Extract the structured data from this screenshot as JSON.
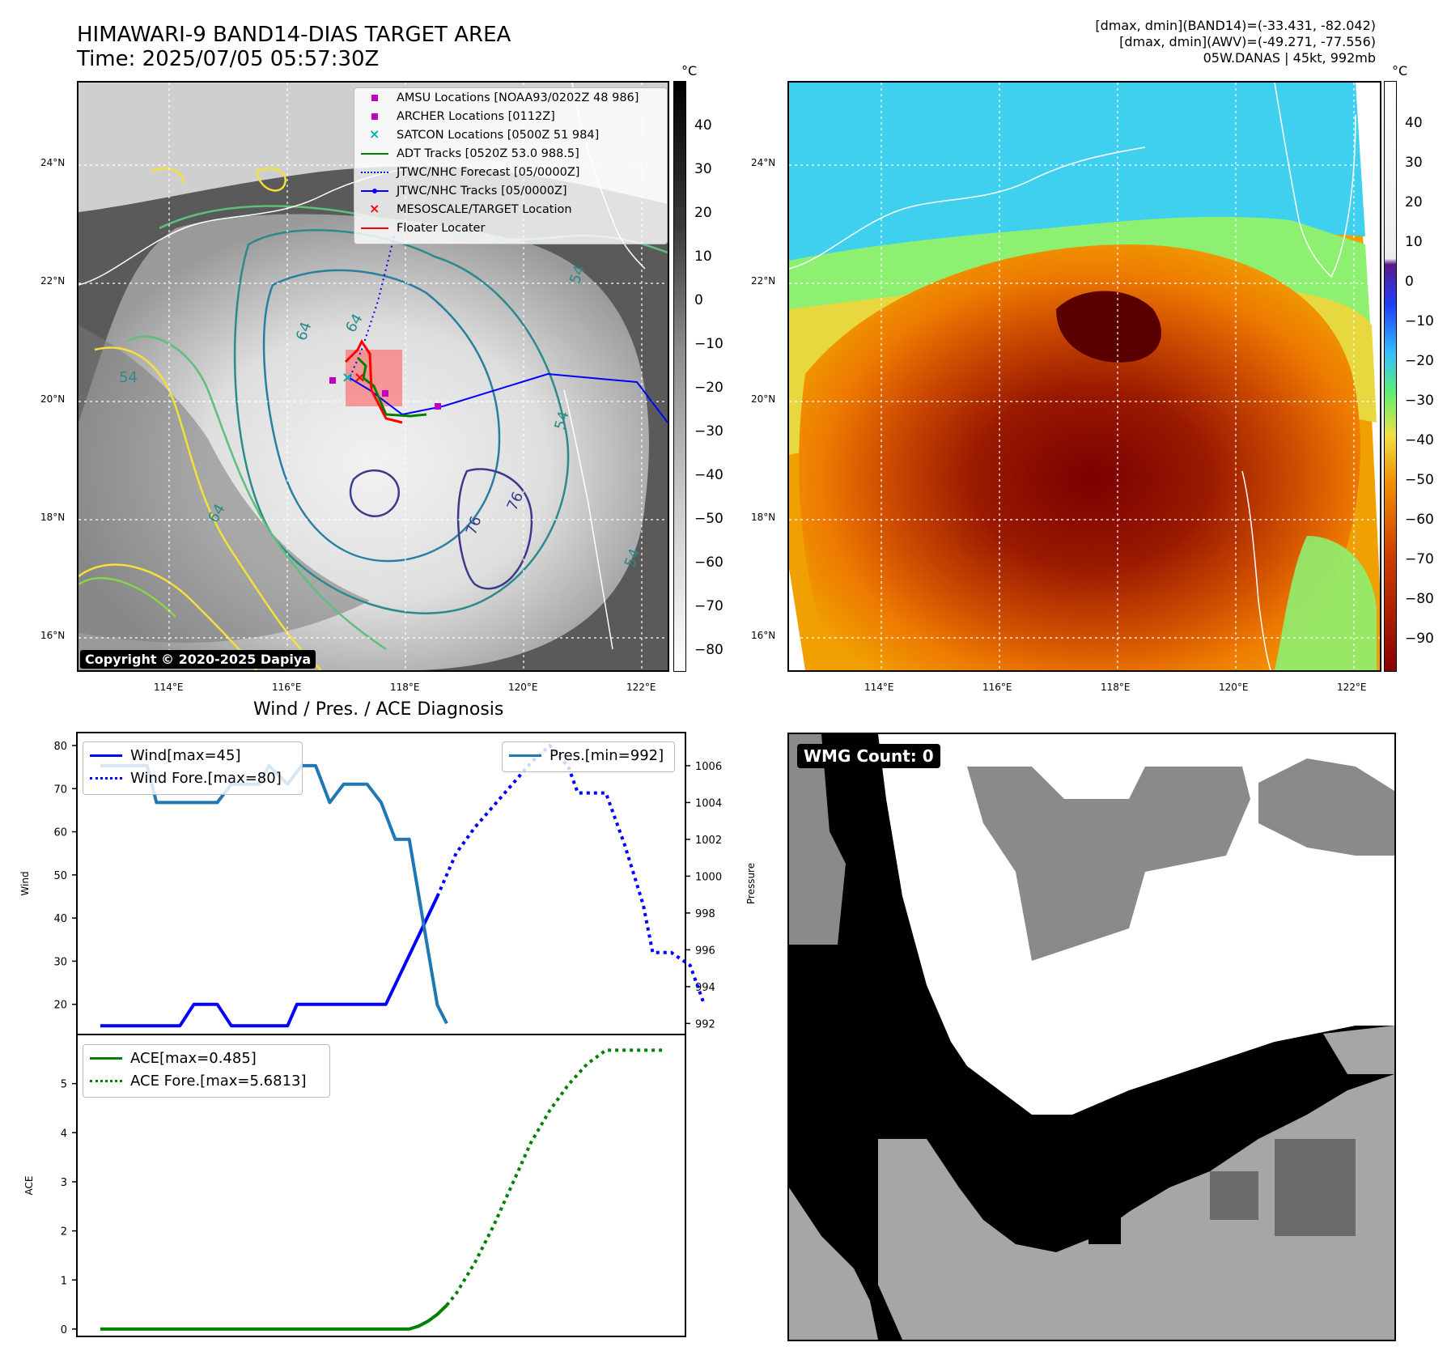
{
  "header": {
    "title_line1": "HIMAWARI-9 BAND14-DIAS TARGET AREA",
    "title_line2": "Time: 2025/07/05 05:57:30Z",
    "info_line1": "[dmax, dmin](BAND14)=(-33.431, -82.042)",
    "info_line2": "[dmax, dmin](AWV)=(-49.271, -77.556)",
    "info_line3": "05W.DANAS | 45kt, 992mb"
  },
  "map_ir": {
    "lat_labels": [
      "24°N",
      "22°N",
      "20°N",
      "18°N",
      "16°N"
    ],
    "lon_labels": [
      "114°E",
      "116°E",
      "118°E",
      "120°E",
      "122°E"
    ],
    "colorbar_unit": "°C",
    "colorbar_ticks": [
      "40",
      "30",
      "20",
      "10",
      "0",
      "−10",
      "−20",
      "−30",
      "−40",
      "−50",
      "−60",
      "−70",
      "−80"
    ],
    "copyright": "Copyright © 2020-2025 Dapiya",
    "contour_labels": [
      "64",
      "64",
      "54",
      "54",
      "54",
      "64",
      "76",
      "76",
      "54"
    ],
    "legend": [
      {
        "label": "AMSU Locations [NOAA93/0202Z 48 986]",
        "marker": "square",
        "color": "#c000c0"
      },
      {
        "label": "ARCHER Locations [0112Z]",
        "marker": "square",
        "color": "#c000c0"
      },
      {
        "label": "SATCON Locations [0500Z 51 984]",
        "marker": "x",
        "color": "#00b0b0"
      },
      {
        "label": "ADT Tracks [0520Z 53.0 988.5]",
        "marker": "line",
        "color": "#008000"
      },
      {
        "label": "JTWC/NHC Forecast [05/0000Z]",
        "marker": "dotted",
        "color": "#0000ff"
      },
      {
        "label": "JTWC/NHC Tracks [05/0000Z]",
        "marker": "line-dot",
        "color": "#0000ff"
      },
      {
        "label": "MESOSCALE/TARGET Location",
        "marker": "x",
        "color": "#ff0000"
      },
      {
        "label": "Floater Locater",
        "marker": "line",
        "color": "#ff0000"
      }
    ]
  },
  "map_wv": {
    "lat_labels": [
      "24°N",
      "22°N",
      "20°N",
      "18°N",
      "16°N"
    ],
    "lon_labels": [
      "114°E",
      "116°E",
      "118°E",
      "120°E",
      "122°E"
    ],
    "colorbar_unit": "°C",
    "colorbar_ticks": [
      "40",
      "30",
      "20",
      "10",
      "0",
      "−10",
      "−20",
      "−30",
      "−40",
      "−50",
      "−60",
      "−70",
      "−80",
      "−90"
    ]
  },
  "diagnosis_title": "Wind / Pres. / ACE Diagnosis",
  "wmg": {
    "label": "WMG Count: 0"
  },
  "chart_data": [
    {
      "type": "line",
      "title": "Wind / Pres. / ACE Diagnosis",
      "ylabel": "Wind",
      "ylabel_right": "Pressure",
      "x": [
        0,
        1,
        2,
        3,
        4,
        5,
        6,
        7,
        8,
        9,
        10,
        11,
        12,
        13,
        14,
        15,
        16,
        17,
        18,
        19,
        20,
        21,
        22,
        23,
        24,
        25,
        26,
        27,
        28,
        29,
        30,
        31,
        32,
        33,
        34,
        35,
        36,
        37,
        38,
        39,
        40,
        41,
        42,
        43,
        44,
        45,
        46,
        47,
        48,
        49,
        50,
        51,
        52,
        53,
        54,
        55,
        56,
        57,
        58,
        59,
        60,
        61,
        62,
        63,
        64,
        65,
        66,
        67,
        68,
        69,
        70,
        71,
        72,
        73,
        74,
        75,
        76,
        77,
        78,
        79,
        80,
        81,
        82,
        83,
        84,
        85,
        86,
        87,
        88,
        89,
        90,
        91,
        92,
        93,
        94,
        95,
        96,
        97,
        98,
        99,
        100,
        101,
        102,
        103,
        104,
        105,
        106,
        107,
        108,
        109,
        110,
        111,
        112,
        113,
        114,
        115,
        116,
        117,
        118,
        119,
        120
      ],
      "xlim": [
        -5,
        125
      ],
      "ylim": [
        13,
        83
      ],
      "ylim_right": [
        991.4,
        1007.8
      ],
      "yticks": [
        20,
        30,
        40,
        50,
        60,
        70,
        80
      ],
      "yticks_right": [
        992,
        994,
        996,
        998,
        1000,
        1002,
        1004,
        1006
      ],
      "series": [
        {
          "name": "Wind[max=45]",
          "axis": "left",
          "style": "solid",
          "color": "#0000ff",
          "points": [
            [
              0,
              15
            ],
            [
              17,
              15
            ],
            [
              20,
              20
            ],
            [
              25,
              20
            ],
            [
              28,
              15
            ],
            [
              40,
              15
            ],
            [
              42,
              20
            ],
            [
              61,
              20
            ],
            [
              72,
              45
            ]
          ]
        },
        {
          "name": "Wind Fore.[max=80]",
          "axis": "left",
          "style": "dotted",
          "color": "#0000ff",
          "points": [
            [
              72,
              45
            ],
            [
              76,
              55
            ],
            [
              80,
              61
            ],
            [
              84,
              66
            ],
            [
              88,
              71
            ],
            [
              92,
              76
            ],
            [
              96,
              80
            ],
            [
              100,
              75
            ],
            [
              102,
              69
            ],
            [
              108,
              69
            ],
            [
              112,
              57
            ],
            [
              114,
              50
            ],
            [
              116,
              43
            ],
            [
              118,
              32
            ],
            [
              122,
              32
            ],
            [
              126,
              29
            ],
            [
              129,
              20
            ]
          ]
        },
        {
          "name": "Pres.[min=992]",
          "axis": "right",
          "style": "solid",
          "color": "#1f77b4",
          "points": [
            [
              0,
              1006
            ],
            [
              10,
              1006
            ],
            [
              12,
              1004
            ],
            [
              25,
              1004
            ],
            [
              28,
              1005
            ],
            [
              34,
              1005
            ],
            [
              36,
              1006
            ],
            [
              40,
              1005
            ],
            [
              43,
              1006
            ],
            [
              46,
              1006
            ],
            [
              49,
              1004
            ],
            [
              52,
              1005
            ],
            [
              57,
              1005
            ],
            [
              60,
              1004
            ],
            [
              63,
              1002
            ],
            [
              66,
              1002
            ],
            [
              70,
              996
            ],
            [
              72,
              993
            ],
            [
              74,
              992
            ]
          ]
        }
      ]
    },
    {
      "type": "line",
      "ylabel": "ACE",
      "xlim": [
        -5,
        125
      ],
      "ylim": [
        -0.15,
        6.0
      ],
      "yticks": [
        0,
        1,
        2,
        3,
        4,
        5
      ],
      "series": [
        {
          "name": "ACE[max=0.485]",
          "style": "solid",
          "color": "#008000",
          "points": [
            [
              0,
              0
            ],
            [
              66,
              0
            ],
            [
              68,
              0.06
            ],
            [
              70,
              0.16
            ],
            [
              72,
              0.3
            ],
            [
              74,
              0.485
            ]
          ]
        },
        {
          "name": "ACE Fore.[max=5.6813]",
          "style": "dotted",
          "color": "#008000",
          "points": [
            [
              74,
              0.485
            ],
            [
              76,
              0.72
            ],
            [
              80,
              1.35
            ],
            [
              84,
              2.1
            ],
            [
              88,
              2.95
            ],
            [
              92,
              3.8
            ],
            [
              96,
              4.45
            ],
            [
              100,
              4.98
            ],
            [
              104,
              5.4
            ],
            [
              108,
              5.68
            ],
            [
              120,
              5.68
            ]
          ]
        }
      ]
    }
  ]
}
